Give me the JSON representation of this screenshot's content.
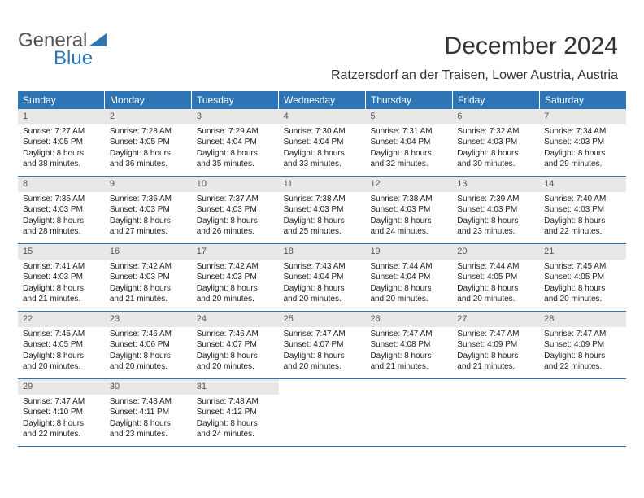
{
  "logo": {
    "text1": "General",
    "text2": "Blue"
  },
  "title": "December 2024",
  "location": "Ratzersdorf an der Traisen, Lower Austria, Austria",
  "weekdays": [
    "Sunday",
    "Monday",
    "Tuesday",
    "Wednesday",
    "Thursday",
    "Friday",
    "Saturday"
  ],
  "colors": {
    "header_bg": "#2e75b6",
    "header_fg": "#ffffff",
    "daynum_bg": "#e8e8e8",
    "week_border": "#2e75b6",
    "logo_blue": "#2e75b6",
    "logo_gray": "#555555",
    "text": "#222222",
    "page_bg": "#ffffff"
  },
  "weeks": [
    [
      {
        "n": "1",
        "sr": "Sunrise: 7:27 AM",
        "ss": "Sunset: 4:05 PM",
        "d1": "Daylight: 8 hours",
        "d2": "and 38 minutes."
      },
      {
        "n": "2",
        "sr": "Sunrise: 7:28 AM",
        "ss": "Sunset: 4:05 PM",
        "d1": "Daylight: 8 hours",
        "d2": "and 36 minutes."
      },
      {
        "n": "3",
        "sr": "Sunrise: 7:29 AM",
        "ss": "Sunset: 4:04 PM",
        "d1": "Daylight: 8 hours",
        "d2": "and 35 minutes."
      },
      {
        "n": "4",
        "sr": "Sunrise: 7:30 AM",
        "ss": "Sunset: 4:04 PM",
        "d1": "Daylight: 8 hours",
        "d2": "and 33 minutes."
      },
      {
        "n": "5",
        "sr": "Sunrise: 7:31 AM",
        "ss": "Sunset: 4:04 PM",
        "d1": "Daylight: 8 hours",
        "d2": "and 32 minutes."
      },
      {
        "n": "6",
        "sr": "Sunrise: 7:32 AM",
        "ss": "Sunset: 4:03 PM",
        "d1": "Daylight: 8 hours",
        "d2": "and 30 minutes."
      },
      {
        "n": "7",
        "sr": "Sunrise: 7:34 AM",
        "ss": "Sunset: 4:03 PM",
        "d1": "Daylight: 8 hours",
        "d2": "and 29 minutes."
      }
    ],
    [
      {
        "n": "8",
        "sr": "Sunrise: 7:35 AM",
        "ss": "Sunset: 4:03 PM",
        "d1": "Daylight: 8 hours",
        "d2": "and 28 minutes."
      },
      {
        "n": "9",
        "sr": "Sunrise: 7:36 AM",
        "ss": "Sunset: 4:03 PM",
        "d1": "Daylight: 8 hours",
        "d2": "and 27 minutes."
      },
      {
        "n": "10",
        "sr": "Sunrise: 7:37 AM",
        "ss": "Sunset: 4:03 PM",
        "d1": "Daylight: 8 hours",
        "d2": "and 26 minutes."
      },
      {
        "n": "11",
        "sr": "Sunrise: 7:38 AM",
        "ss": "Sunset: 4:03 PM",
        "d1": "Daylight: 8 hours",
        "d2": "and 25 minutes."
      },
      {
        "n": "12",
        "sr": "Sunrise: 7:38 AM",
        "ss": "Sunset: 4:03 PM",
        "d1": "Daylight: 8 hours",
        "d2": "and 24 minutes."
      },
      {
        "n": "13",
        "sr": "Sunrise: 7:39 AM",
        "ss": "Sunset: 4:03 PM",
        "d1": "Daylight: 8 hours",
        "d2": "and 23 minutes."
      },
      {
        "n": "14",
        "sr": "Sunrise: 7:40 AM",
        "ss": "Sunset: 4:03 PM",
        "d1": "Daylight: 8 hours",
        "d2": "and 22 minutes."
      }
    ],
    [
      {
        "n": "15",
        "sr": "Sunrise: 7:41 AM",
        "ss": "Sunset: 4:03 PM",
        "d1": "Daylight: 8 hours",
        "d2": "and 21 minutes."
      },
      {
        "n": "16",
        "sr": "Sunrise: 7:42 AM",
        "ss": "Sunset: 4:03 PM",
        "d1": "Daylight: 8 hours",
        "d2": "and 21 minutes."
      },
      {
        "n": "17",
        "sr": "Sunrise: 7:42 AM",
        "ss": "Sunset: 4:03 PM",
        "d1": "Daylight: 8 hours",
        "d2": "and 20 minutes."
      },
      {
        "n": "18",
        "sr": "Sunrise: 7:43 AM",
        "ss": "Sunset: 4:04 PM",
        "d1": "Daylight: 8 hours",
        "d2": "and 20 minutes."
      },
      {
        "n": "19",
        "sr": "Sunrise: 7:44 AM",
        "ss": "Sunset: 4:04 PM",
        "d1": "Daylight: 8 hours",
        "d2": "and 20 minutes."
      },
      {
        "n": "20",
        "sr": "Sunrise: 7:44 AM",
        "ss": "Sunset: 4:05 PM",
        "d1": "Daylight: 8 hours",
        "d2": "and 20 minutes."
      },
      {
        "n": "21",
        "sr": "Sunrise: 7:45 AM",
        "ss": "Sunset: 4:05 PM",
        "d1": "Daylight: 8 hours",
        "d2": "and 20 minutes."
      }
    ],
    [
      {
        "n": "22",
        "sr": "Sunrise: 7:45 AM",
        "ss": "Sunset: 4:05 PM",
        "d1": "Daylight: 8 hours",
        "d2": "and 20 minutes."
      },
      {
        "n": "23",
        "sr": "Sunrise: 7:46 AM",
        "ss": "Sunset: 4:06 PM",
        "d1": "Daylight: 8 hours",
        "d2": "and 20 minutes."
      },
      {
        "n": "24",
        "sr": "Sunrise: 7:46 AM",
        "ss": "Sunset: 4:07 PM",
        "d1": "Daylight: 8 hours",
        "d2": "and 20 minutes."
      },
      {
        "n": "25",
        "sr": "Sunrise: 7:47 AM",
        "ss": "Sunset: 4:07 PM",
        "d1": "Daylight: 8 hours",
        "d2": "and 20 minutes."
      },
      {
        "n": "26",
        "sr": "Sunrise: 7:47 AM",
        "ss": "Sunset: 4:08 PM",
        "d1": "Daylight: 8 hours",
        "d2": "and 21 minutes."
      },
      {
        "n": "27",
        "sr": "Sunrise: 7:47 AM",
        "ss": "Sunset: 4:09 PM",
        "d1": "Daylight: 8 hours",
        "d2": "and 21 minutes."
      },
      {
        "n": "28",
        "sr": "Sunrise: 7:47 AM",
        "ss": "Sunset: 4:09 PM",
        "d1": "Daylight: 8 hours",
        "d2": "and 22 minutes."
      }
    ],
    [
      {
        "n": "29",
        "sr": "Sunrise: 7:47 AM",
        "ss": "Sunset: 4:10 PM",
        "d1": "Daylight: 8 hours",
        "d2": "and 22 minutes."
      },
      {
        "n": "30",
        "sr": "Sunrise: 7:48 AM",
        "ss": "Sunset: 4:11 PM",
        "d1": "Daylight: 8 hours",
        "d2": "and 23 minutes."
      },
      {
        "n": "31",
        "sr": "Sunrise: 7:48 AM",
        "ss": "Sunset: 4:12 PM",
        "d1": "Daylight: 8 hours",
        "d2": "and 24 minutes."
      },
      {
        "empty": true
      },
      {
        "empty": true
      },
      {
        "empty": true
      },
      {
        "empty": true
      }
    ]
  ]
}
